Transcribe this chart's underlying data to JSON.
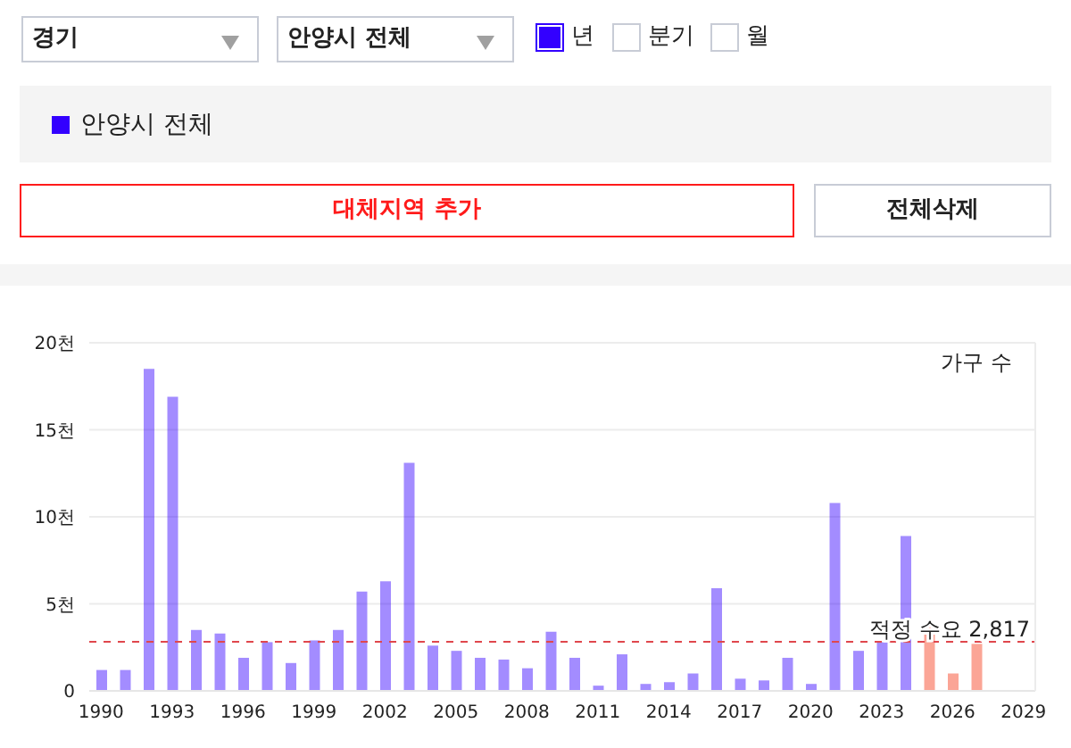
{
  "chart_data": {
    "type": "bar",
    "ylabel": "가구 수",
    "categories": [
      "1990",
      null,
      null,
      "1993",
      null,
      null,
      "1996",
      null,
      null,
      "1999",
      null,
      null,
      "2002",
      null,
      null,
      "2005",
      null,
      null,
      "2008",
      null,
      null,
      "2011",
      null,
      null,
      "2014",
      null,
      null,
      "2017",
      null,
      null,
      "2020",
      null,
      null,
      "2023",
      null,
      null,
      "2026",
      null,
      null,
      "2029"
    ],
    "series": [
      {
        "name": "안양시 전체",
        "color": "#3300ff",
        "values": [
          1.2,
          1.2,
          18.5,
          16.9,
          3.5,
          3.3,
          1.9,
          2.8,
          1.6,
          2.9,
          3.5,
          5.7,
          6.3,
          13.1,
          2.6,
          2.3,
          1.9,
          1.8,
          1.3,
          3.4,
          1.9,
          0.3,
          2.1,
          0.4,
          0.5,
          1.0,
          5.9,
          0.7,
          0.6,
          1.9,
          0.4,
          10.8,
          2.3,
          2.8,
          8.9,
          3.9,
          1.0,
          2.7,
          null,
          null
        ],
        "colors": [
          "#3300ff",
          "#3300ff",
          "#3300ff",
          "#3300ff",
          "#3300ff",
          "#3300ff",
          "#3300ff",
          "#3300ff",
          "#3300ff",
          "#3300ff",
          "#3300ff",
          "#3300ff",
          "#3300ff",
          "#3300ff",
          "#3300ff",
          "#3300ff",
          "#3300ff",
          "#3300ff",
          "#3300ff",
          "#3300ff",
          "#3300ff",
          "#3300ff",
          "#3300ff",
          "#3300ff",
          "#3300ff",
          "#3300ff",
          "#3300ff",
          "#3300ff",
          "#3300ff",
          "#3300ff",
          "#3300ff",
          "#3300ff",
          "#3300ff",
          "#3300ff",
          "#3300ff",
          "#f63716",
          "#f63716",
          "#f63716",
          "#f63716",
          "#f63716"
        ]
      }
    ],
    "ylim": [
      0,
      20
    ],
    "yticks": [
      0,
      {
        "value": 5,
        "label": "5천"
      },
      {
        "value": 10,
        "label": "10천"
      },
      {
        "value": 15,
        "label": "15천"
      },
      {
        "value": 20,
        "label": "20천"
      }
    ],
    "grid": "y",
    "legend": "top",
    "ref_lines": [
      {
        "axis": "y",
        "value": 2.817,
        "label": "적정 수요 2,817",
        "color": "#e0474c",
        "line_style": "dashed"
      }
    ],
    "annotations": [
      "경기",
      "안양시 전체",
      "년",
      "분기",
      "월",
      "대체지역 추가",
      "전체삭제"
    ]
  }
}
